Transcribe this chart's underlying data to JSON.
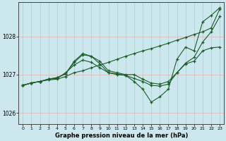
{
  "background_color": "#cce8ee",
  "grid_color": "#aacccc",
  "line_color": "#1a5c2a",
  "xlabel": "Graphe pression niveau de la mer (hPa)",
  "xlim": [
    -0.5,
    23.5
  ],
  "ylim": [
    1025.7,
    1028.9
  ],
  "yticks": [
    1026,
    1027,
    1028
  ],
  "xticks": [
    0,
    1,
    2,
    3,
    4,
    5,
    6,
    7,
    8,
    9,
    10,
    11,
    12,
    13,
    14,
    15,
    16,
    17,
    18,
    19,
    20,
    21,
    22,
    23
  ],
  "line1_x": [
    0,
    1,
    2,
    3,
    4,
    5,
    6,
    7,
    8,
    9,
    10,
    11,
    12,
    13,
    14,
    15,
    16,
    17,
    18,
    19,
    20,
    21,
    22,
    23
  ],
  "line1_y": [
    1026.72,
    1026.78,
    1026.82,
    1026.86,
    1026.88,
    1026.95,
    1027.05,
    1027.1,
    1027.18,
    1027.25,
    1027.32,
    1027.4,
    1027.48,
    1027.55,
    1027.62,
    1027.68,
    1027.75,
    1027.82,
    1027.9,
    1027.97,
    1028.05,
    1028.12,
    1028.22,
    1028.72
  ],
  "line2_x": [
    0,
    1,
    2,
    3,
    4,
    5,
    6,
    7,
    8,
    9,
    10,
    11,
    12,
    13,
    14,
    15,
    16,
    17,
    18,
    19,
    20,
    21,
    22,
    23
  ],
  "line2_y": [
    1026.72,
    1026.78,
    1026.82,
    1026.88,
    1026.9,
    1027.05,
    1027.25,
    1027.38,
    1027.32,
    1027.18,
    1027.05,
    1027.02,
    1026.98,
    1026.9,
    1026.82,
    1026.72,
    1026.7,
    1026.75,
    1027.05,
    1027.28,
    1027.35,
    1027.62,
    1027.7,
    1027.72
  ],
  "line3_x": [
    0,
    1,
    2,
    3,
    4,
    5,
    6,
    7,
    8,
    9,
    10,
    11,
    12,
    13,
    14,
    15,
    16,
    17,
    18,
    19,
    20,
    21,
    22,
    23
  ],
  "line3_y": [
    1026.72,
    1026.78,
    1026.82,
    1026.88,
    1026.92,
    1027.02,
    1027.32,
    1027.52,
    1027.48,
    1027.35,
    1027.1,
    1027.05,
    1027.0,
    1027.0,
    1026.88,
    1026.78,
    1026.75,
    1026.82,
    1027.05,
    1027.3,
    1027.45,
    1027.85,
    1028.12,
    1028.52
  ],
  "line4_x": [
    0,
    1,
    2,
    3,
    4,
    5,
    6,
    7,
    8,
    9,
    10,
    11,
    12,
    13,
    14,
    15,
    16,
    17,
    18,
    19,
    20,
    21,
    22,
    23
  ],
  "line4_y": [
    1026.72,
    1026.78,
    1026.82,
    1026.88,
    1026.92,
    1027.02,
    1027.35,
    1027.55,
    1027.48,
    1027.28,
    1027.05,
    1027.0,
    1026.98,
    1026.82,
    1026.62,
    1026.28,
    1026.42,
    1026.62,
    1027.4,
    1027.72,
    1027.62,
    1028.38,
    1028.55,
    1028.75
  ]
}
